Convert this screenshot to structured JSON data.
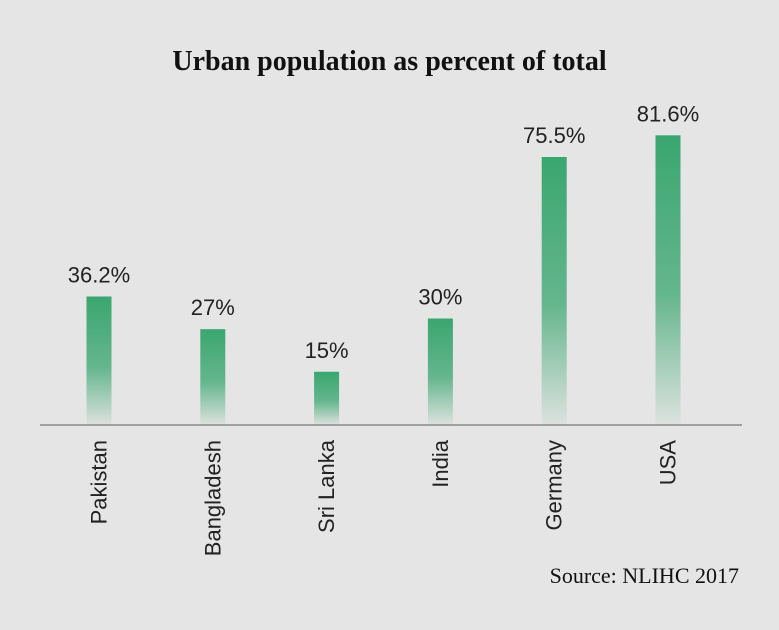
{
  "chart_data": {
    "type": "bar",
    "title": "Urban population as percent of total",
    "categories": [
      "Pakistan",
      "Bangladesh",
      "Sri Lanka",
      "India",
      "Germany",
      "USA"
    ],
    "values": [
      36.2,
      27,
      15,
      30,
      75.5,
      81.6
    ],
    "value_labels": [
      "36.2%",
      "27%",
      "15%",
      "30%",
      "75.5%",
      "81.6%"
    ],
    "ylim": [
      0,
      100
    ],
    "grid": false,
    "legend": "none",
    "bar_color": "#3aa66f",
    "source": "Source: NLIHC 2017"
  }
}
